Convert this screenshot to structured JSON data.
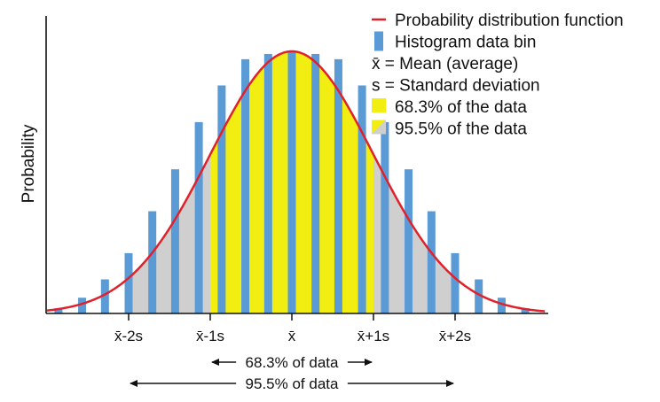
{
  "chart_data": {
    "type": "histogram",
    "title": "",
    "ylabel": "Probability",
    "xlabel": "",
    "grid": false,
    "legend_placement": "top-right",
    "colors": {
      "curve": "#e0212b",
      "bin": "#5b9bd5",
      "within_1s": "#f2ee12",
      "within_2s": "#cfcfcf",
      "axis": "#111111"
    },
    "xlim": [
      -3.0,
      3.1
    ],
    "ylim": [
      0,
      1.0
    ],
    "x_ticks": [
      {
        "x": -2,
        "label": "x̄-2s"
      },
      {
        "x": -1,
        "label": "x̄-1s"
      },
      {
        "x": 0,
        "label": "x̄"
      },
      {
        "x": 1,
        "label": "x̄+1s"
      },
      {
        "x": 2,
        "label": "x̄+2s"
      }
    ],
    "bins": {
      "x": [
        -2.86,
        -2.57,
        -2.29,
        -2.0,
        -1.71,
        -1.43,
        -1.14,
        -0.86,
        -0.57,
        -0.29,
        0.0,
        0.29,
        0.57,
        0.86,
        1.14,
        1.43,
        1.71,
        2.0,
        2.29,
        2.57,
        2.86
      ],
      "values": [
        0.02,
        0.06,
        0.13,
        0.23,
        0.39,
        0.55,
        0.73,
        0.87,
        0.97,
        0.99,
        1.0,
        0.99,
        0.97,
        0.87,
        0.73,
        0.55,
        0.39,
        0.23,
        0.13,
        0.06,
        0.02
      ]
    },
    "series": [
      {
        "name": "Probability distribution function",
        "type": "curve"
      },
      {
        "name": "Histogram data bin",
        "type": "bar"
      }
    ],
    "legend": [
      {
        "kind": "line",
        "label": "Probability distribution function"
      },
      {
        "kind": "bar",
        "label": "Histogram data bin"
      },
      {
        "kind": "text",
        "symbol": "x̄",
        "label": "= Mean (average)"
      },
      {
        "kind": "text",
        "symbol": "s",
        "label": "= Standard deviation"
      },
      {
        "kind": "swatch-yellow",
        "label": "68.3% of the data"
      },
      {
        "kind": "swatch-split",
        "label": "95.5% of the data"
      }
    ],
    "ranges": [
      {
        "from": -1,
        "to": 1,
        "label": "68.3% of data"
      },
      {
        "from": -2,
        "to": 2,
        "label": "95.5% of data"
      }
    ]
  }
}
